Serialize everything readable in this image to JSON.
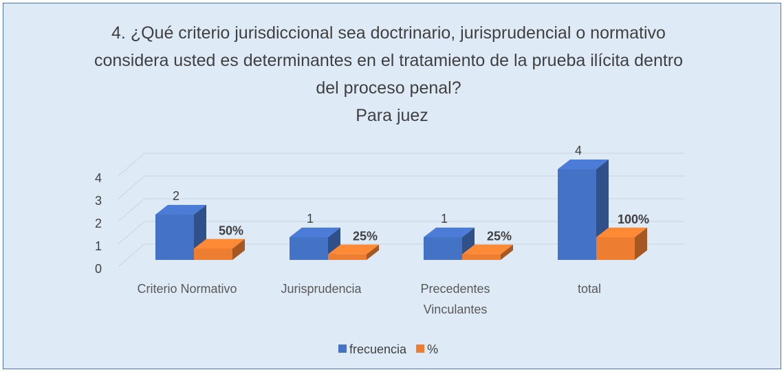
{
  "chart_data": {
    "type": "bar3d",
    "title": "4. ¿Qué criterio jurisdiccional sea doctrinario, jurisprudencial o normativo considera usted es determinantes en el tratamiento de la prueba ilícita dentro del proceso penal?",
    "subtitle": "Para juez",
    "categories": [
      "Criterio Normativo",
      "Jurisprudencia",
      "Precedentes Vinculantes",
      "total"
    ],
    "series": [
      {
        "name": "frecuencia",
        "color": "#4472c4",
        "values": [
          2,
          1,
          1,
          4
        ]
      },
      {
        "name": "%",
        "color": "#ed7d31",
        "values": [
          0.5,
          0.25,
          0.25,
          1
        ],
        "value_labels": [
          "50%",
          "25%",
          "25%",
          "100%"
        ]
      }
    ],
    "ylim": [
      0,
      4
    ],
    "yticks": [
      0,
      1,
      2,
      3,
      4
    ],
    "grid": true,
    "legend": "bottom"
  }
}
